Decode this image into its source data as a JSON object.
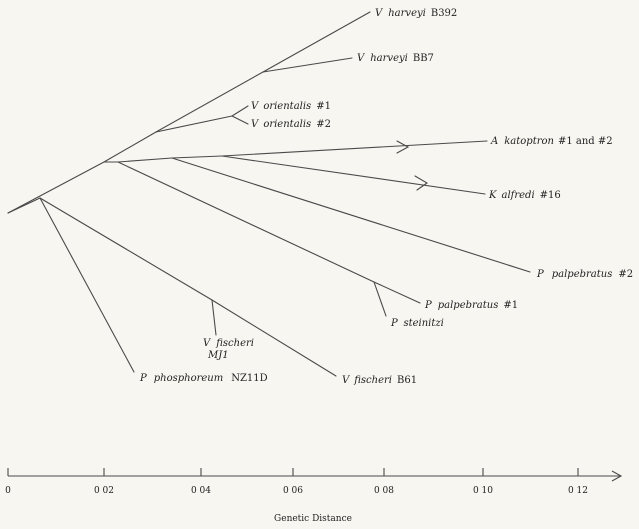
{
  "tree": {
    "taxa": [
      {
        "id": "v-harveyi-b392",
        "genus": "V",
        "species": "harveyi",
        "strain": "B392"
      },
      {
        "id": "v-harveyi-bb7",
        "genus": "V",
        "species": "harveyi",
        "strain": "BB7"
      },
      {
        "id": "v-orientalis-1",
        "genus": "V",
        "species": "orientalis",
        "strain": "#1"
      },
      {
        "id": "v-orientalis-2",
        "genus": "V",
        "species": "orientalis",
        "strain": "#2"
      },
      {
        "id": "a-katoptron",
        "genus": "A",
        "species": "katoptron",
        "strain": "#1 and #2"
      },
      {
        "id": "k-alfredi",
        "genus": "K",
        "species": "alfredi",
        "strain": "#16"
      },
      {
        "id": "p-palpebratus-2",
        "genus": "P",
        "species": "palpebratus",
        "strain": "#2"
      },
      {
        "id": "p-palpebratus-1",
        "genus": "P",
        "species": "palpebratus",
        "strain": "#1"
      },
      {
        "id": "p-steinitzi",
        "genus": "P",
        "species": "steinitzi",
        "strain": ""
      },
      {
        "id": "v-fischeri-mj1",
        "genus": "V",
        "species": "fischeri",
        "strain": "MJ1"
      },
      {
        "id": "v-fischeri-b61",
        "genus": "V",
        "species": "fischeri",
        "strain": "B61"
      },
      {
        "id": "p-phosphoreum-nz11d",
        "genus": "P",
        "species": "phosphoreum",
        "strain": "NZ11D"
      }
    ]
  },
  "axis": {
    "title": "Genetic Distance",
    "ticks": [
      "0",
      "0 02",
      "0 04",
      "0 06",
      "0 08",
      "0 10",
      "0 12"
    ]
  }
}
